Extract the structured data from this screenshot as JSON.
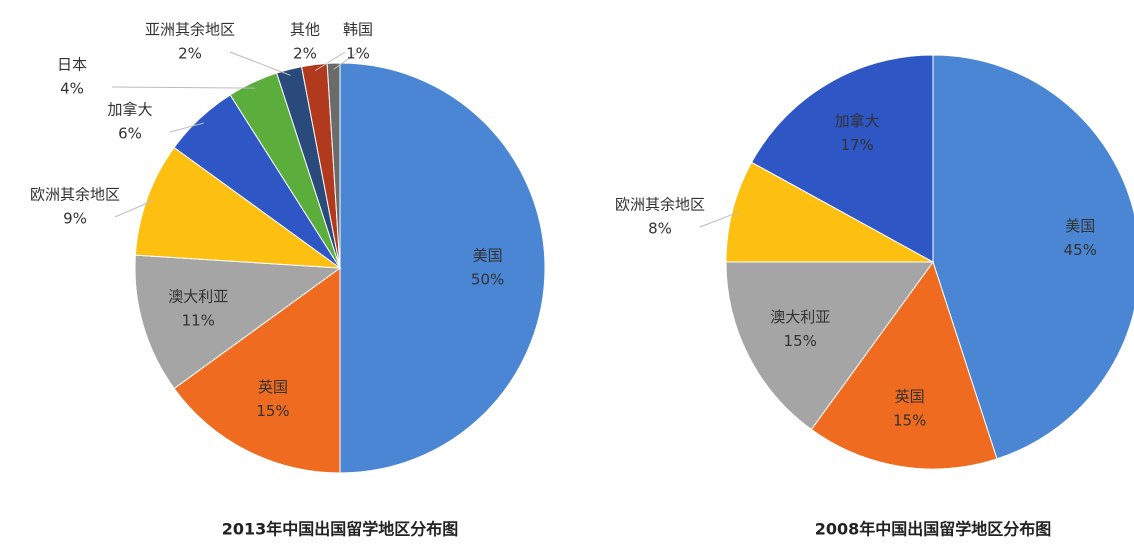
{
  "chart_data": [
    {
      "type": "pie",
      "title": "2013年中国出国留学地区分布图",
      "categories": [
        "美国",
        "英国",
        "澳大利亚",
        "欧洲其余地区",
        "加拿大",
        "日本",
        "亚洲其余地区",
        "其他",
        "韩国"
      ],
      "values": [
        50,
        15,
        11,
        9,
        6,
        4,
        2,
        2,
        1
      ],
      "value_labels": [
        "50%",
        "15%",
        "11%",
        "9%",
        "6%",
        "4%",
        "2%",
        "2%",
        "1%"
      ],
      "colors": [
        "#4a86d4",
        "#ee6b1f",
        "#a5a5a5",
        "#fdbf10",
        "#2e56c4",
        "#5bad3c",
        "#2a4a7c",
        "#b0391e",
        "#6b6b6b"
      ]
    },
    {
      "type": "pie",
      "title": "2008年中国出国留学地区分布图",
      "categories": [
        "美国",
        "英国",
        "澳大利亚",
        "欧洲其余地区",
        "加拿大"
      ],
      "values": [
        45,
        15,
        15,
        8,
        17
      ],
      "value_labels": [
        "45%",
        "15%",
        "15%",
        "8%",
        "17%"
      ],
      "colors": [
        "#4a86d4",
        "#ee6b1f",
        "#a5a5a5",
        "#fdbf10",
        "#2e56c4"
      ]
    }
  ]
}
